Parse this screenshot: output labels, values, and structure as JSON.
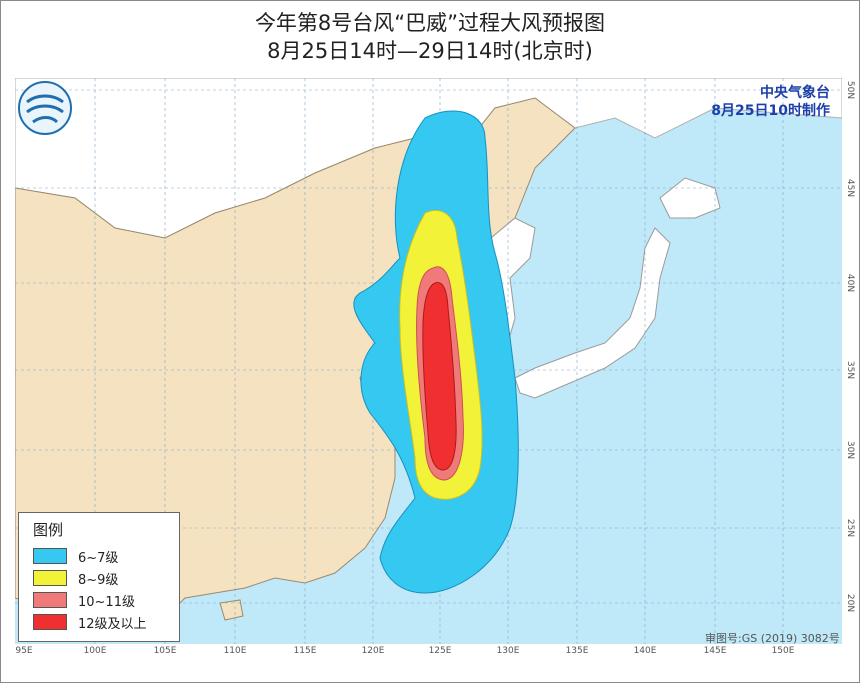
{
  "title": {
    "line1": "今年第8号台风“巴威”过程大风预报图",
    "line2": "8月25日14时—29日14时(北京时)"
  },
  "agency": {
    "name": "中央气象台",
    "issued": "8月25日10时制作"
  },
  "legend": {
    "title": "图例",
    "items": [
      {
        "label": "6~7级",
        "color": "#35c8f0"
      },
      {
        "label": "8~9级",
        "color": "#f2f238"
      },
      {
        "label": "10~11级",
        "color": "#f07a7a"
      },
      {
        "label": "12级及以上",
        "color": "#f03030"
      }
    ]
  },
  "axis": {
    "lon_labels": [
      "95E",
      "100E",
      "105E",
      "110E",
      "115E",
      "120E",
      "125E",
      "130E",
      "135E",
      "140E",
      "145E",
      "150E"
    ],
    "lat_labels": [
      "50N",
      "45N",
      "40N",
      "35N",
      "30N",
      "25N",
      "20N"
    ]
  },
  "approval": "审图号:GS (2019) 3082号",
  "colors": {
    "land": "#f4e2c0",
    "sea": "#bfe9f8",
    "foreign_land": "#ffffff",
    "grid": "#7fa7c8"
  }
}
